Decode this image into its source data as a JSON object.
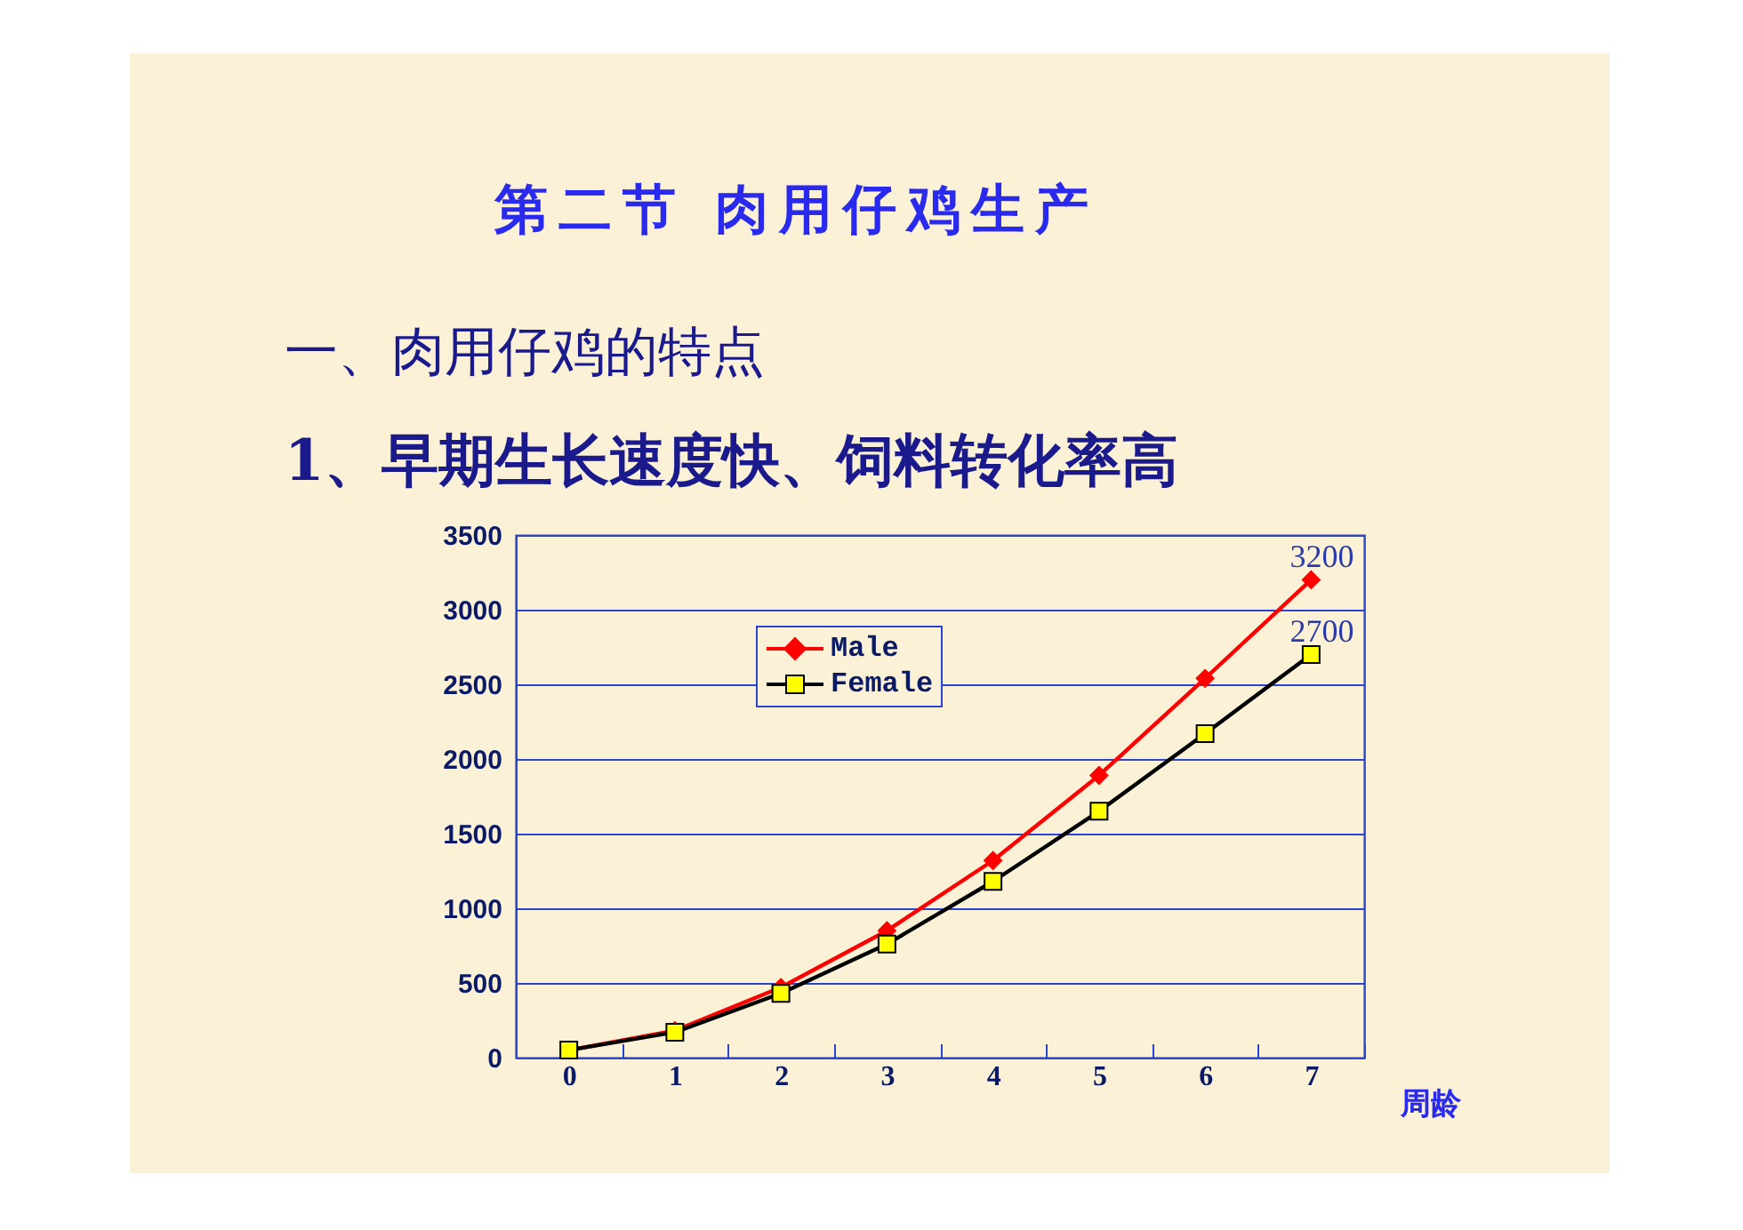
{
  "chart_data": {
    "type": "line",
    "title": "第二节  肉用仔鸡生产",
    "subtitle": "一、肉用仔鸡的特点",
    "annotations": [
      "1、早期生长速度快、饲料转化率高"
    ],
    "xlabel": "周龄",
    "categories": [
      "0",
      "1",
      "2",
      "3",
      "4",
      "5",
      "6",
      "7"
    ],
    "series": [
      {
        "name": "Male",
        "color": "#ff0000",
        "marker": "diamond",
        "values": [
          50,
          180,
          470,
          850,
          1320,
          1890,
          2540,
          3200
        ],
        "value_labels": [
          null,
          null,
          null,
          null,
          null,
          null,
          null,
          "3200"
        ]
      },
      {
        "name": "Female",
        "color": "#000000",
        "marker": "square",
        "values": [
          50,
          170,
          430,
          760,
          1180,
          1650,
          2170,
          2700
        ],
        "value_labels": [
          null,
          null,
          null,
          null,
          null,
          null,
          null,
          "2700"
        ]
      }
    ],
    "ylim": [
      0,
      3500
    ],
    "yticks": [
      0,
      500,
      1000,
      1500,
      2000,
      2500,
      3000,
      3500
    ],
    "grid": "y",
    "legend": "top left"
  }
}
